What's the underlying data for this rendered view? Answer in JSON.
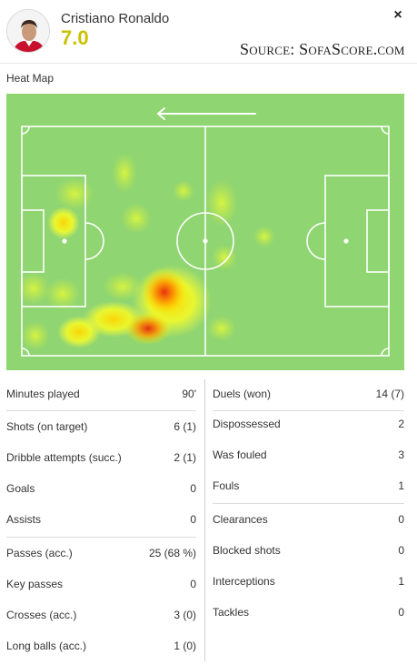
{
  "player": {
    "name": "Cristiano Ronaldo",
    "rating": "7.0"
  },
  "header": {
    "close_label": "×",
    "source_label": "Source: SofaScore.com"
  },
  "heatmap": {
    "title": "Heat Map",
    "pitch_color": "#8fd571",
    "line_color": "#ffffff"
  },
  "stats": {
    "left": [
      {
        "label": "Minutes played",
        "value": "90'"
      },
      {
        "label": "Shots (on target)",
        "value": "6 (1)"
      },
      {
        "label": "Dribble attempts (succ.)",
        "value": "2 (1)"
      },
      {
        "label": "Goals",
        "value": "0"
      },
      {
        "label": "Assists",
        "value": "0"
      },
      {
        "label": "Passes (acc.)",
        "value": "25 (68 %)"
      },
      {
        "label": "Key passes",
        "value": "0"
      },
      {
        "label": "Crosses (acc.)",
        "value": "3 (0)"
      },
      {
        "label": "Long balls (acc.)",
        "value": "1 (0)"
      }
    ],
    "right": [
      {
        "label": "Duels (won)",
        "value": "14 (7)"
      },
      {
        "label": "Dispossessed",
        "value": "2"
      },
      {
        "label": "Was fouled",
        "value": "3"
      },
      {
        "label": "Fouls",
        "value": "1"
      },
      {
        "label": "Clearances",
        "value": "0"
      },
      {
        "label": "Blocked shots",
        "value": "0"
      },
      {
        "label": "Interceptions",
        "value": "1"
      },
      {
        "label": "Tackles",
        "value": "0"
      }
    ]
  }
}
